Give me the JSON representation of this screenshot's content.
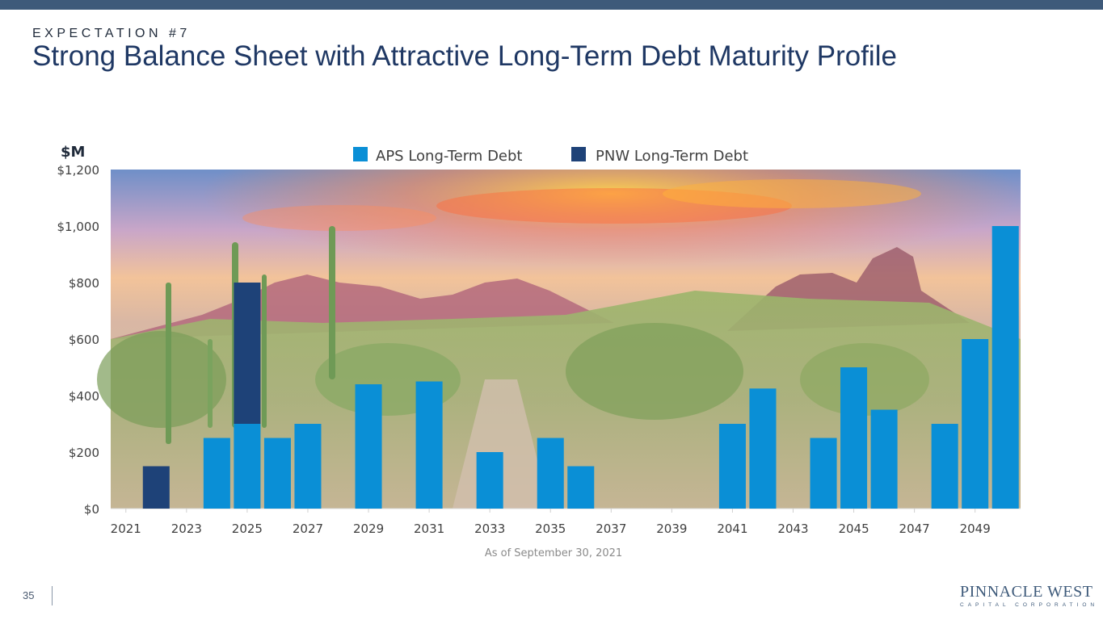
{
  "header": {
    "eyebrow": "EXPECTATION #7",
    "title": "Strong Balance Sheet with Attractive Long-Term Debt Maturity Profile"
  },
  "footer": {
    "page_number": "35",
    "logo_main": "PINNACLE WEST",
    "logo_sub": "CAPITAL CORPORATION"
  },
  "colors": {
    "aps": "#0a8fd6",
    "pnw": "#1e4278",
    "header_band": "#3e5a7a",
    "title": "#1f3864"
  },
  "chart_data": {
    "type": "bar",
    "stacked": true,
    "ylabel": "$M",
    "note": "As of September 30, 2021",
    "ylim": [
      0,
      1200
    ],
    "y_ticks": [
      "$0",
      "$200",
      "$400",
      "$600",
      "$800",
      "$1,000",
      "$1,200"
    ],
    "x_tick_labels": [
      "2021",
      "2023",
      "2025",
      "2027",
      "2029",
      "2031",
      "2033",
      "2035",
      "2037",
      "2039",
      "2041",
      "2043",
      "2045",
      "2047",
      "2049"
    ],
    "legend_position": "top-center",
    "grid": false,
    "background": "desert landscape photo",
    "categories": [
      2021,
      2022,
      2023,
      2024,
      2025,
      2026,
      2027,
      2028,
      2029,
      2030,
      2031,
      2032,
      2033,
      2034,
      2035,
      2036,
      2037,
      2038,
      2039,
      2040,
      2041,
      2042,
      2043,
      2044,
      2045,
      2046,
      2047,
      2048,
      2049,
      2050
    ],
    "series": [
      {
        "name": "APS Long-Term Debt",
        "color": "#0a8fd6",
        "values": [
          0,
          0,
          0,
          250,
          300,
          250,
          300,
          0,
          440,
          0,
          450,
          0,
          200,
          0,
          250,
          150,
          0,
          0,
          0,
          0,
          300,
          425,
          0,
          250,
          500,
          350,
          0,
          300,
          600,
          1000
        ]
      },
      {
        "name": "PNW Long-Term Debt",
        "color": "#1e4278",
        "values": [
          0,
          150,
          0,
          0,
          500,
          0,
          0,
          0,
          0,
          0,
          0,
          0,
          0,
          0,
          0,
          0,
          0,
          0,
          0,
          0,
          0,
          0,
          0,
          0,
          0,
          0,
          0,
          0,
          0,
          0
        ]
      }
    ]
  }
}
